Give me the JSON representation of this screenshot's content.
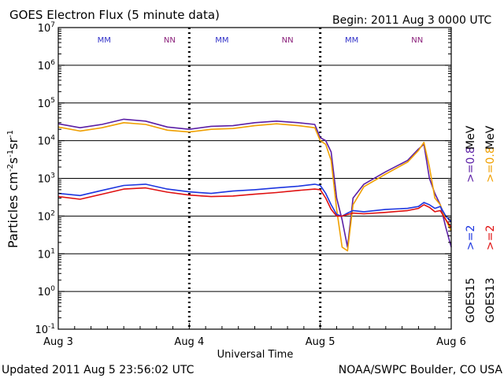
{
  "header": {
    "title": "GOES Electron Flux (5 minute data)",
    "begin": "Begin: 2011 Aug 3 0000 UTC"
  },
  "footer": {
    "updated": "Updated 2011 Aug  5 23:56:02 UTC",
    "credit": "NOAA/SWPC Boulder, CO USA"
  },
  "colors": {
    "goes15_gt08": "#5b1fa6",
    "goes13_gt08": "#f0a000",
    "goes15_gt2": "#1d36e0",
    "goes13_gt2": "#e01010",
    "noon_marker_m": "#3030c8",
    "noon_marker_n": "#8a1f7a"
  },
  "noon_markers": [
    {
      "label": "MM",
      "day": 0.35
    },
    {
      "label": "NN",
      "day": 0.85
    },
    {
      "label": "MM",
      "day": 1.25
    },
    {
      "label": "NN",
      "day": 1.75
    },
    {
      "label": "MM",
      "day": 2.24
    },
    {
      "label": "NN",
      "day": 2.74
    }
  ],
  "right_labels": {
    "goes15_gt2": ">=2",
    "goes15_gt08": ">=0.8",
    "goes15_unit": "MeV",
    "goes15_name": "GOES15",
    "goes13_gt2": ">=2",
    "goes13_gt08": ">=0.8",
    "goes13_unit": "MeV",
    "goes13_name": "GOES13"
  },
  "chart_data": {
    "type": "line",
    "title": "GOES Electron Flux (5 minute data)",
    "xlabel": "Universal Time",
    "ylabel": "Particles cm⁻²s⁻¹sr⁻¹",
    "y_scale": "log",
    "ylim": [
      0.1,
      10000000
    ],
    "xlim": [
      "Aug 3",
      "Aug 6"
    ],
    "x_ticks": [
      "Aug 3",
      "Aug 4",
      "Aug 5",
      "Aug 6"
    ],
    "y_ticks": [
      "10⁷",
      "10⁶",
      "10⁵",
      "10⁴",
      "10³",
      "10²",
      "10¹",
      "10⁰",
      "10⁻¹"
    ],
    "threshold_line": 1000,
    "grid": "horizontal at each decade",
    "series": [
      {
        "name": "GOES15 >=0.8 MeV",
        "color": "#5b1fa6",
        "x": [
          "Aug 3 00:00",
          "Aug 3 04:00",
          "Aug 3 08:00",
          "Aug 3 12:00",
          "Aug 3 16:00",
          "Aug 3 20:00",
          "Aug 4 00:00",
          "Aug 4 04:00",
          "Aug 4 08:00",
          "Aug 4 12:00",
          "Aug 4 16:00",
          "Aug 4 20:00",
          "Aug 4 23:00",
          "Aug 5 00:00",
          "Aug 5 01:00",
          "Aug 5 02:00",
          "Aug 5 03:00",
          "Aug 5 04:00",
          "Aug 5 05:00",
          "Aug 5 06:00",
          "Aug 5 08:00",
          "Aug 5 12:00",
          "Aug 5 16:00",
          "Aug 5 18:00",
          "Aug 5 19:00",
          "Aug 5 20:00",
          "Aug 5 21:00",
          "Aug 5 22:00",
          "Aug 5 23:00",
          "Aug 5 24:00"
        ],
        "values": [
          28000,
          22000,
          27000,
          37000,
          33000,
          23000,
          20000,
          24000,
          25000,
          30000,
          33000,
          30000,
          27000,
          12000,
          10000,
          5000,
          300,
          80,
          15,
          300,
          700,
          1500,
          3000,
          6000,
          8000,
          1000,
          400,
          200,
          50,
          15
        ]
      },
      {
        "name": "GOES13 >=0.8 MeV",
        "color": "#f0a000",
        "x": [
          "Aug 3 00:00",
          "Aug 3 04:00",
          "Aug 3 08:00",
          "Aug 3 12:00",
          "Aug 3 16:00",
          "Aug 3 20:00",
          "Aug 4 00:00",
          "Aug 4 04:00",
          "Aug 4 08:00",
          "Aug 4 12:00",
          "Aug 4 16:00",
          "Aug 4 20:00",
          "Aug 4 23:00",
          "Aug 5 00:00",
          "Aug 5 01:00",
          "Aug 5 02:00",
          "Aug 5 03:00",
          "Aug 5 04:00",
          "Aug 5 05:00",
          "Aug 5 06:00",
          "Aug 5 08:00",
          "Aug 5 12:00",
          "Aug 5 16:00",
          "Aug 5 18:00",
          "Aug 5 19:00",
          "Aug 5 20:00",
          "Aug 5 21:00",
          "Aug 5 22:00",
          "Aug 5 23:00",
          "Aug 5 24:00"
        ],
        "values": [
          23000,
          18000,
          22000,
          30000,
          27000,
          19000,
          17000,
          20000,
          21000,
          25000,
          28000,
          25000,
          22000,
          10000,
          8000,
          3000,
          150,
          15,
          12,
          200,
          600,
          1300,
          2700,
          5500,
          9000,
          2000,
          300,
          200,
          80,
          40
        ]
      },
      {
        "name": "GOES15 >=2 MeV",
        "color": "#1d36e0",
        "x": [
          "Aug 3 00:00",
          "Aug 3 04:00",
          "Aug 3 08:00",
          "Aug 3 12:00",
          "Aug 3 16:00",
          "Aug 3 20:00",
          "Aug 4 00:00",
          "Aug 4 04:00",
          "Aug 4 08:00",
          "Aug 4 12:00",
          "Aug 4 16:00",
          "Aug 4 20:00",
          "Aug 4 23:00",
          "Aug 5 00:00",
          "Aug 5 01:00",
          "Aug 5 02:00",
          "Aug 5 03:00",
          "Aug 5 04:00",
          "Aug 5 05:00",
          "Aug 5 06:00",
          "Aug 5 08:00",
          "Aug 5 12:00",
          "Aug 5 16:00",
          "Aug 5 18:00",
          "Aug 5 19:00",
          "Aug 5 20:00",
          "Aug 5 21:00",
          "Aug 5 22:00",
          "Aug 5 23:00",
          "Aug 5 24:00"
        ],
        "values": [
          400,
          350,
          480,
          650,
          700,
          520,
          440,
          400,
          460,
          500,
          560,
          620,
          700,
          650,
          400,
          200,
          110,
          100,
          120,
          140,
          130,
          150,
          160,
          180,
          230,
          200,
          160,
          180,
          100,
          70
        ]
      },
      {
        "name": "GOES13 >=2 MeV",
        "color": "#e01010",
        "x": [
          "Aug 3 00:00",
          "Aug 3 04:00",
          "Aug 3 08:00",
          "Aug 3 12:00",
          "Aug 3 16:00",
          "Aug 3 20:00",
          "Aug 4 00:00",
          "Aug 4 04:00",
          "Aug 4 08:00",
          "Aug 4 12:00",
          "Aug 4 16:00",
          "Aug 4 20:00",
          "Aug 4 23:00",
          "Aug 5 00:00",
          "Aug 5 01:00",
          "Aug 5 02:00",
          "Aug 5 03:00",
          "Aug 5 04:00",
          "Aug 5 05:00",
          "Aug 5 06:00",
          "Aug 5 08:00",
          "Aug 5 12:00",
          "Aug 5 16:00",
          "Aug 5 18:00",
          "Aug 5 19:00",
          "Aug 5 20:00",
          "Aug 5 21:00",
          "Aug 5 22:00",
          "Aug 5 23:00",
          "Aug 5 24:00"
        ],
        "values": [
          330,
          280,
          380,
          520,
          560,
          430,
          360,
          330,
          340,
          380,
          420,
          480,
          520,
          500,
          300,
          150,
          100,
          100,
          110,
          120,
          115,
          125,
          140,
          160,
          200,
          170,
          130,
          140,
          80,
          50
        ]
      }
    ]
  }
}
